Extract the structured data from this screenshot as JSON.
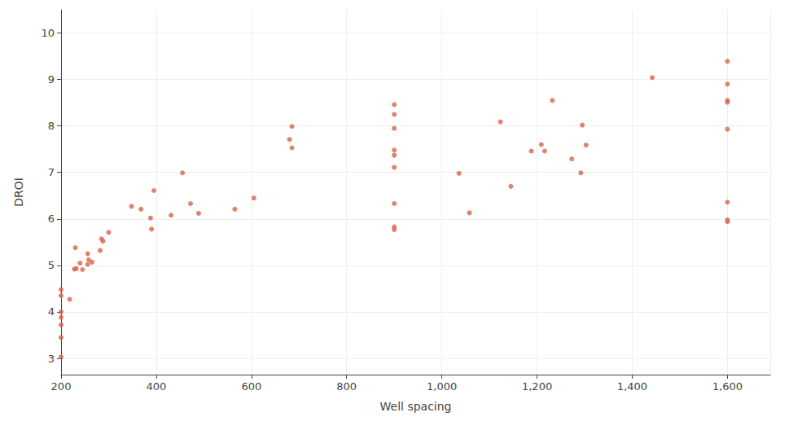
{
  "chart_data": {
    "type": "scatter",
    "x_label": "Well spacing",
    "y_label": "DROI",
    "x": [
      200,
      200,
      200,
      200,
      200,
      200,
      200,
      218,
      228,
      232,
      230,
      240,
      245,
      256,
      256,
      258,
      265,
      282,
      285,
      288,
      300,
      348,
      368,
      388,
      390,
      395,
      431,
      455,
      472,
      489,
      565,
      605,
      680,
      685,
      685,
      900,
      900,
      900,
      900,
      900,
      900,
      900,
      900,
      900,
      1036,
      1058,
      1123,
      1145,
      1188,
      1209,
      1216,
      1232,
      1273,
      1292,
      1295,
      1303,
      1442,
      1600,
      1600,
      1600,
      1600,
      1600,
      1600,
      1600,
      1600
    ],
    "values": [
      4.48,
      4.35,
      4.0,
      3.88,
      3.72,
      3.45,
      3.03,
      4.27,
      4.92,
      4.93,
      5.38,
      5.05,
      4.91,
      5.25,
      5.02,
      5.12,
      5.07,
      5.32,
      5.57,
      5.52,
      5.71,
      6.27,
      6.21,
      6.02,
      5.78,
      6.61,
      6.08,
      6.99,
      6.33,
      6.12,
      6.21,
      6.45,
      7.71,
      7.99,
      7.53,
      8.46,
      8.25,
      7.95,
      7.48,
      7.37,
      7.11,
      6.33,
      5.83,
      5.77,
      6.98,
      6.13,
      8.09,
      6.7,
      7.46,
      7.6,
      7.46,
      8.55,
      7.29,
      6.99,
      8.02,
      7.59,
      9.04,
      9.39,
      8.9,
      8.55,
      8.51,
      7.93,
      6.36,
      5.98,
      5.94
    ],
    "color": "#d9634c",
    "marker": "circle",
    "xlim": [
      200,
      1690
    ],
    "xticks": [
      200,
      400,
      600,
      800,
      1000,
      1200,
      1400,
      1600
    ],
    "ylim": [
      2.65,
      10.5
    ],
    "yticks": [
      3,
      4,
      5,
      6,
      7,
      8,
      9,
      10
    ],
    "grid": true
  }
}
